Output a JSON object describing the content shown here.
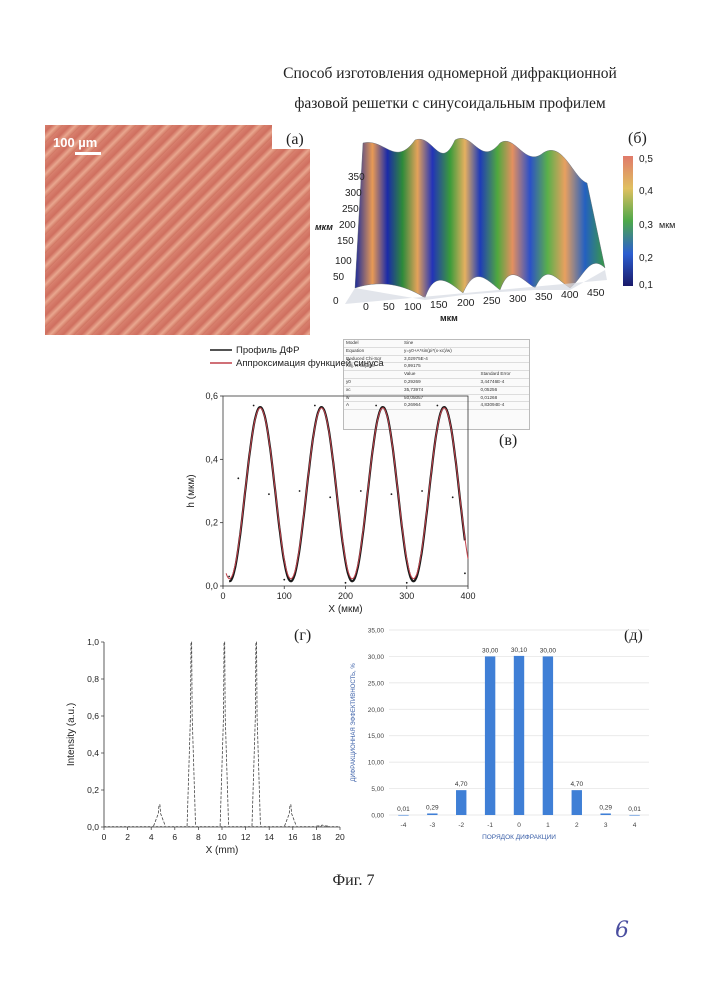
{
  "header": {
    "title_line1": "Способ изготовления одномерной дифракционной",
    "title_line2": "фазовой решетки с синусоидальным профилем"
  },
  "panels": {
    "a": "(а)",
    "b": "(б)",
    "v": "(в)",
    "g": "(г)",
    "d": "(д)"
  },
  "panel_a": {
    "scale_label": "100 µm"
  },
  "panel_b": {
    "x_unit": "мкм",
    "y_unit": "мкм",
    "x_ticks": [
      "0",
      "50",
      "100",
      "150",
      "200",
      "250",
      "300",
      "350",
      "400",
      "450"
    ],
    "y_ticks": [
      "0",
      "50",
      "100",
      "150",
      "200",
      "250",
      "300",
      "350"
    ],
    "colorbar_ticks": [
      "0,5",
      "0,4",
      "0,3",
      "0,2",
      "0,1"
    ],
    "colorbar_unit": "мкм"
  },
  "stats_table": {
    "rows": [
      [
        "Model",
        "Sine",
        ""
      ],
      [
        "Equation",
        "y=y0+A*sin(pi*(x-xc)/w)",
        ""
      ],
      [
        "Reduced Chi-Sqr",
        "3,02975E-4",
        ""
      ],
      [
        "Adj. R-Square",
        "0,99175",
        ""
      ],
      [
        "",
        "Value",
        "Standard Error"
      ],
      [
        "y0",
        "0,29269",
        "3,44746E-4"
      ],
      [
        "xc",
        "35,73974",
        "0,05256"
      ],
      [
        "w",
        "50,05057",
        "0,01268"
      ],
      [
        "A",
        "0,26964",
        "4,83094E-4"
      ]
    ],
    "group_label": "h"
  },
  "footer": {
    "figure_caption": "Фиг. 7",
    "page_number": "6"
  },
  "chart_data": [
    {
      "id": "v",
      "type": "line",
      "xlabel": "X (мкм)",
      "ylabel": "h (мкм)",
      "xlim": [
        0,
        400
      ],
      "ylim": [
        0,
        0.6
      ],
      "x_ticks": [
        "0",
        "100",
        "200",
        "300",
        "400"
      ],
      "y_ticks": [
        "0,0",
        "0,2",
        "0,4",
        "0,6"
      ],
      "legend": [
        "Профиль ДФР",
        "Аппроксимация функцией синуса"
      ],
      "legend_placement": "top-left",
      "series": [
        {
          "name": "Профиль ДФР",
          "color": "#1a1a1a",
          "x": [
            10,
            25,
            50,
            75,
            100,
            125,
            150,
            175,
            200,
            225,
            250,
            275,
            300,
            325,
            350,
            375,
            395
          ],
          "y": [
            0.03,
            0.34,
            0.57,
            0.29,
            0.02,
            0.3,
            0.57,
            0.28,
            0.01,
            0.3,
            0.57,
            0.29,
            0.01,
            0.3,
            0.57,
            0.28,
            0.04
          ]
        },
        {
          "name": "Аппроксимация функцией синуса",
          "color": "#c0404a",
          "fit": {
            "y0": 0.29269,
            "xc": 35.73974,
            "w": 50.05057,
            "A": 0.26964
          }
        }
      ]
    },
    {
      "id": "g",
      "type": "line",
      "xlabel": "X (mm)",
      "ylabel": "Intensity (a.u.)",
      "xlim": [
        0,
        20
      ],
      "ylim": [
        0,
        1.0
      ],
      "x_ticks": [
        "0",
        "2",
        "4",
        "6",
        "8",
        "10",
        "12",
        "14",
        "16",
        "18",
        "20"
      ],
      "y_ticks": [
        "0,0",
        "0,2",
        "0,4",
        "0,6",
        "0,8",
        "1,0"
      ],
      "peaks": [
        {
          "x": 4.7,
          "y": 0.12
        },
        {
          "x": 7.4,
          "y": 1.0
        },
        {
          "x": 10.2,
          "y": 1.0
        },
        {
          "x": 12.9,
          "y": 1.0
        },
        {
          "x": 15.8,
          "y": 0.12
        },
        {
          "x": 18.5,
          "y": 0.01
        }
      ]
    },
    {
      "id": "d",
      "type": "bar",
      "xlabel": "ПОРЯДОК ДИФРАКЦИИ",
      "ylabel": "ДИФРАКЦИОННАЯ ЭФФЕКТИВНОСТЬ, %",
      "ylim": [
        0,
        35
      ],
      "y_ticks": [
        "0,00",
        "5,00",
        "10,00",
        "15,00",
        "20,00",
        "25,00",
        "30,00",
        "35,00"
      ],
      "categories": [
        "-4",
        "-3",
        "-2",
        "-1",
        "0",
        "1",
        "2",
        "3",
        "4"
      ],
      "values": [
        0.01,
        0.29,
        4.7,
        30.0,
        30.1,
        30.0,
        4.7,
        0.29,
        0.01
      ],
      "data_labels": [
        "0,01",
        "0,29",
        "4,70",
        "30,00",
        "30,10",
        "30,00",
        "4,70",
        "0,29",
        "0,01"
      ],
      "bar_color": "#3f7fd6",
      "grid": true
    }
  ]
}
